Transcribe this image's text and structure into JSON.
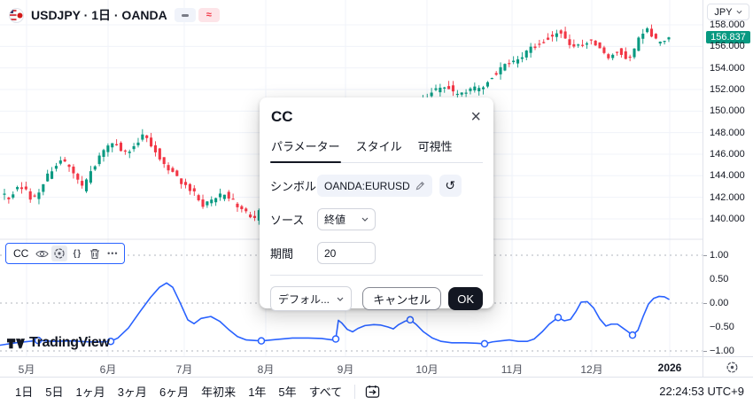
{
  "header": {
    "title": "USDJPY · 1日 · OANDA",
    "badges": [
      {
        "name": "bar-status",
        "glyph": "—"
      },
      {
        "name": "approx-data",
        "glyph": "≈"
      }
    ]
  },
  "price_scale": {
    "currency": "JPY",
    "current": "156.837",
    "labels": [
      [
        "158.000",
        158
      ],
      [
        "156.000",
        156
      ],
      [
        "154.000",
        154
      ],
      [
        "152.000",
        152
      ],
      [
        "150.000",
        150
      ],
      [
        "148.000",
        148
      ],
      [
        "146.000",
        146
      ],
      [
        "144.000",
        144
      ],
      [
        "142.000",
        142
      ],
      [
        "140.000",
        140
      ]
    ]
  },
  "cc_scale": {
    "labels": [
      [
        "1.00",
        1
      ],
      [
        "0.50",
        0.5
      ],
      [
        "0.00",
        0
      ],
      [
        "−0.50",
        -0.5
      ],
      [
        "−1.00",
        -1
      ]
    ],
    "tick_values": [
      1,
      0,
      -1
    ]
  },
  "legend": {
    "indicator": "CC",
    "icons": [
      "eye-icon",
      "gear-icon",
      "source-code-icon",
      "trash-icon",
      "more-icon"
    ],
    "braces_glyph": "{}",
    "dots_glyph": "•••"
  },
  "logo": {
    "text": "TradingView"
  },
  "dialog": {
    "title": "CC",
    "close_glyph": "×",
    "tabs": [
      {
        "label": "パラメーター",
        "active": true
      },
      {
        "label": "スタイル",
        "active": false
      },
      {
        "label": "可視性",
        "active": false
      }
    ],
    "fields": {
      "symbol_label": "シンボル",
      "symbol_value": "OANDA:EURUSD",
      "source_label": "ソース",
      "source_value": "終値",
      "period_label": "期間",
      "period_value": "20"
    },
    "footer": {
      "preset": "デフォル...",
      "cancel": "キャンセル",
      "ok": "OK"
    }
  },
  "toolbar": {
    "ranges": [
      "1日",
      "5日",
      "1ヶ月",
      "3ヶ月",
      "6ヶ月",
      "年初来",
      "1年",
      "5年",
      "すべて"
    ],
    "clock": "22:24:53 UTC+9"
  },
  "chart_data": {
    "type": "candlestick",
    "symbol": "USDJPY",
    "interval": "1日",
    "exchange": "OANDA",
    "price_pane": {
      "ylabel": "JPY",
      "ylim": [
        138.9,
        158.8
      ],
      "grid_step": 2,
      "up_color": "#089981",
      "down_color": "#F23645",
      "last_price": 156.837,
      "candle_count": 155,
      "candle_step": 4.87,
      "start_x": 5,
      "price_path": [
        [
          0,
          142.6
        ],
        [
          12,
          142.0
        ],
        [
          25,
          143.2
        ],
        [
          40,
          141.6
        ],
        [
          55,
          143.8
        ],
        [
          70,
          145.6
        ],
        [
          82,
          144.6
        ],
        [
          95,
          142.8
        ],
        [
          108,
          144.8
        ],
        [
          120,
          146.3
        ],
        [
          132,
          147.0
        ],
        [
          143,
          146.1
        ],
        [
          155,
          146.9
        ],
        [
          164,
          147.9
        ],
        [
          172,
          147.1
        ],
        [
          182,
          145.7
        ],
        [
          194,
          144.5
        ],
        [
          206,
          143.5
        ],
        [
          220,
          142.5
        ],
        [
          233,
          141.2
        ],
        [
          246,
          141.9
        ],
        [
          258,
          142.4
        ],
        [
          272,
          141.0
        ],
        [
          288,
          139.9
        ],
        [
          305,
          141.5
        ],
        [
          320,
          142.8
        ],
        [
          338,
          142.3
        ],
        [
          352,
          143.3
        ],
        [
          368,
          142.0
        ],
        [
          382,
          141.3
        ],
        [
          398,
          142.6
        ],
        [
          415,
          144.2
        ],
        [
          432,
          145.6
        ],
        [
          448,
          147.2
        ],
        [
          462,
          149.2
        ],
        [
          478,
          151.0
        ],
        [
          492,
          151.9
        ],
        [
          505,
          152.4
        ],
        [
          518,
          151.5
        ],
        [
          532,
          151.9
        ],
        [
          545,
          152.2
        ],
        [
          558,
          153.3
        ],
        [
          572,
          154.3
        ],
        [
          585,
          154.7
        ],
        [
          598,
          155.7
        ],
        [
          612,
          156.4
        ],
        [
          625,
          157.1
        ],
        [
          634,
          157.5
        ],
        [
          645,
          156.1
        ],
        [
          655,
          155.9
        ],
        [
          668,
          156.7
        ],
        [
          678,
          155.9
        ],
        [
          690,
          155.1
        ],
        [
          700,
          155.7
        ],
        [
          710,
          154.9
        ],
        [
          718,
          155.5
        ],
        [
          726,
          157.3
        ],
        [
          733,
          157.7
        ],
        [
          740,
          156.6
        ],
        [
          747,
          156.3
        ],
        [
          755,
          156.9
        ]
      ]
    },
    "indicator_pane": {
      "type": "line",
      "name": "CC",
      "period": 20,
      "source": "終値",
      "symbol": "OANDA:EURUSD",
      "color": "#2962FF",
      "ylim": [
        -1.1,
        1.1
      ],
      "dashed_levels": [
        1,
        0,
        -1
      ],
      "points": [
        [
          0,
          -0.88
        ],
        [
          18,
          -0.83
        ],
        [
          43,
          -0.78
        ],
        [
          60,
          -0.8
        ],
        [
          80,
          -0.79
        ],
        [
          100,
          -0.81
        ],
        [
          118,
          -0.81
        ],
        [
          125,
          -0.8
        ],
        [
          133,
          -0.73
        ],
        [
          145,
          -0.52
        ],
        [
          158,
          -0.18
        ],
        [
          170,
          0.12
        ],
        [
          180,
          0.33
        ],
        [
          188,
          0.42
        ],
        [
          195,
          0.33
        ],
        [
          203,
          0.02
        ],
        [
          212,
          -0.35
        ],
        [
          219,
          -0.43
        ],
        [
          227,
          -0.32
        ],
        [
          238,
          -0.28
        ],
        [
          248,
          -0.38
        ],
        [
          258,
          -0.55
        ],
        [
          268,
          -0.7
        ],
        [
          278,
          -0.77
        ],
        [
          295,
          -0.79
        ],
        [
          312,
          -0.76
        ],
        [
          330,
          -0.73
        ],
        [
          348,
          -0.73
        ],
        [
          363,
          -0.74
        ],
        [
          375,
          -0.77
        ],
        [
          379,
          -0.75
        ],
        [
          382,
          -0.36
        ],
        [
          386,
          -0.42
        ],
        [
          392,
          -0.55
        ],
        [
          398,
          -0.6
        ],
        [
          404,
          -0.53
        ],
        [
          412,
          -0.47
        ],
        [
          422,
          -0.45
        ],
        [
          430,
          -0.46
        ],
        [
          438,
          -0.5
        ],
        [
          444,
          -0.54
        ],
        [
          450,
          -0.45
        ],
        [
          457,
          -0.38
        ],
        [
          463,
          -0.35
        ],
        [
          470,
          -0.45
        ],
        [
          478,
          -0.6
        ],
        [
          488,
          -0.73
        ],
        [
          498,
          -0.8
        ],
        [
          510,
          -0.83
        ],
        [
          525,
          -0.83
        ],
        [
          538,
          -0.84
        ],
        [
          547,
          -0.85
        ],
        [
          556,
          -0.81
        ],
        [
          565,
          -0.79
        ],
        [
          575,
          -0.77
        ],
        [
          585,
          -0.8
        ],
        [
          595,
          -0.8
        ],
        [
          603,
          -0.75
        ],
        [
          612,
          -0.6
        ],
        [
          620,
          -0.44
        ],
        [
          630,
          -0.3
        ],
        [
          637,
          -0.37
        ],
        [
          644,
          -0.34
        ],
        [
          650,
          -0.18
        ],
        [
          656,
          0.02
        ],
        [
          663,
          0.03
        ],
        [
          670,
          -0.1
        ],
        [
          677,
          -0.33
        ],
        [
          684,
          -0.48
        ],
        [
          690,
          -0.44
        ],
        [
          697,
          -0.44
        ],
        [
          703,
          -0.52
        ],
        [
          709,
          -0.6
        ],
        [
          714,
          -0.67
        ],
        [
          720,
          -0.57
        ],
        [
          726,
          -0.28
        ],
        [
          732,
          -0.02
        ],
        [
          738,
          0.1
        ],
        [
          744,
          0.14
        ],
        [
          750,
          0.13
        ],
        [
          755,
          0.08
        ]
      ],
      "markers": [
        [
          43,
          -0.78
        ],
        [
          125,
          -0.8
        ],
        [
          295,
          -0.79
        ],
        [
          379,
          -0.75
        ],
        [
          463,
          -0.35
        ],
        [
          547,
          -0.85
        ],
        [
          630,
          -0.3
        ],
        [
          714,
          -0.67
        ]
      ]
    },
    "x_axis": {
      "months": [
        [
          "5月",
          30
        ],
        [
          "6月",
          122
        ],
        [
          "7月",
          208
        ],
        [
          "8月",
          300
        ],
        [
          "9月",
          390
        ],
        [
          "10月",
          482
        ],
        [
          "11月",
          578
        ],
        [
          "12月",
          668
        ],
        [
          "2026",
          756
        ]
      ]
    }
  }
}
